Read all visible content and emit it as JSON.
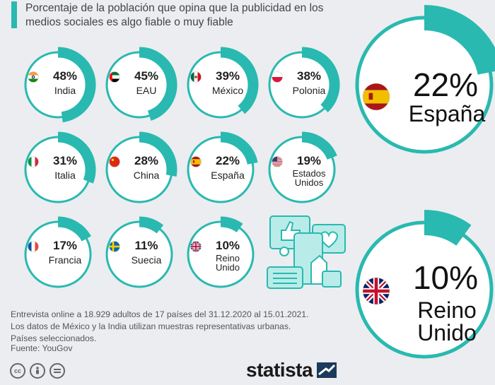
{
  "subtitle": "Porcentaje de la población que opina que la publicidad en los medios sociales es algo fiable o muy fiable",
  "chart_data": {
    "type": "donut",
    "title": "Porcentaje de la población que opina que la publicidad en los medios sociales es algo fiable o muy fiable",
    "unit": "%",
    "countries": [
      {
        "label": "India",
        "value": 48,
        "value_label": "48%",
        "flag": "india-flag"
      },
      {
        "label": "EAU",
        "value": 45,
        "value_label": "45%",
        "flag": "uae-flag"
      },
      {
        "label": "México",
        "value": 39,
        "value_label": "39%",
        "flag": "mexico-flag"
      },
      {
        "label": "Polonia",
        "value": 38,
        "value_label": "38%",
        "flag": "poland-flag"
      },
      {
        "label": "Italia",
        "value": 31,
        "value_label": "31%",
        "flag": "italy-flag"
      },
      {
        "label": "China",
        "value": 28,
        "value_label": "28%",
        "flag": "china-flag"
      },
      {
        "label": "España",
        "value": 22,
        "value_label": "22%",
        "flag": "spain-flag"
      },
      {
        "label": "Estados Unidos",
        "value": 19,
        "value_label": "19%",
        "flag": "usa-flag"
      },
      {
        "label": "Francia",
        "value": 17,
        "value_label": "17%",
        "flag": "france-flag"
      },
      {
        "label": "Suecia",
        "value": 11,
        "value_label": "11%",
        "flag": "sweden-flag"
      },
      {
        "label": "Reino Unido",
        "value": 10,
        "value_label": "10%",
        "flag": "uk-flag"
      }
    ],
    "highlights": [
      {
        "label": "España",
        "value": 22,
        "value_label": "22%",
        "flag": "spain-flag"
      },
      {
        "label": "Reino Unido",
        "value": 10,
        "value_label": "10%",
        "flag": "uk-flag"
      }
    ]
  },
  "notes": [
    "Entrevista online a 18.929 adultos de 17 países del 31.12.2020 al 15.01.2021.",
    "Los datos de México y la India utilizan muestras representativas urbanas.",
    "Países seleccionados."
  ],
  "source": "Fuente: YouGov",
  "brand": "statista",
  "license_icons": [
    "cc",
    "by",
    "nd"
  ],
  "colors": {
    "accent": "#29b9b0",
    "ring_bg": "#ffffff",
    "page_bg": "#ebedf0"
  }
}
